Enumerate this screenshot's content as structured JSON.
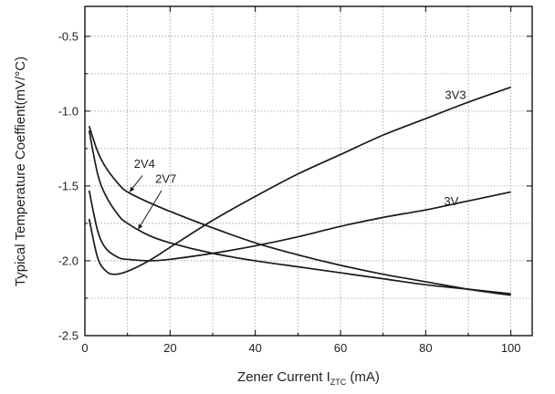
{
  "chart_data": {
    "type": "line",
    "title": "",
    "xlabel": {
      "main": "Zener Current  I",
      "sub": "ZTC",
      "tail": "  (mA)"
    },
    "ylabel": "Typical Temperature Coeffient(mV/°C)",
    "xlim": [
      0,
      105
    ],
    "ylim": [
      -2.5,
      -0.3
    ],
    "xticks": [
      0,
      20,
      40,
      60,
      80,
      100
    ],
    "yticks": [
      -2.5,
      -2.0,
      -1.5,
      -1.0,
      -0.5
    ],
    "xtick_labels": [
      "0",
      "20",
      "40",
      "60",
      "80",
      "100"
    ],
    "ytick_labels": [
      "-2.5",
      "-2.0",
      "-1.5",
      "-1.0",
      "-0.5"
    ],
    "grid": true,
    "series": [
      {
        "name": "3V3",
        "x": [
          1,
          3,
          5,
          7,
          10,
          15,
          20,
          30,
          40,
          50,
          60,
          70,
          80,
          90,
          100
        ],
        "y": [
          -1.72,
          -1.98,
          -2.07,
          -2.09,
          -2.07,
          -2.0,
          -1.91,
          -1.73,
          -1.57,
          -1.42,
          -1.29,
          -1.16,
          -1.05,
          -0.94,
          -0.84
        ]
      },
      {
        "name": "3V",
        "x": [
          1,
          3,
          5,
          8,
          10,
          15,
          20,
          30,
          40,
          50,
          60,
          70,
          80,
          90,
          100
        ],
        "y": [
          -1.53,
          -1.8,
          -1.92,
          -1.98,
          -1.99,
          -2.0,
          -1.99,
          -1.95,
          -1.9,
          -1.84,
          -1.77,
          -1.71,
          -1.66,
          -1.6,
          -1.54
        ]
      },
      {
        "name": "2V4",
        "x": [
          1,
          3,
          5,
          8,
          10,
          15,
          20,
          30,
          40,
          50,
          60,
          70,
          80,
          90,
          100
        ],
        "y": [
          -1.1,
          -1.27,
          -1.38,
          -1.49,
          -1.54,
          -1.61,
          -1.67,
          -1.78,
          -1.88,
          -1.96,
          -2.03,
          -2.09,
          -2.14,
          -2.19,
          -2.23
        ]
      },
      {
        "name": "2V7",
        "x": [
          1,
          3,
          5,
          8,
          10,
          15,
          20,
          30,
          40,
          50,
          60,
          70,
          80,
          90,
          100
        ],
        "y": [
          -1.13,
          -1.42,
          -1.57,
          -1.7,
          -1.75,
          -1.83,
          -1.88,
          -1.95,
          -2.0,
          -2.04,
          -2.08,
          -2.12,
          -2.16,
          -2.19,
          -2.22
        ]
      }
    ],
    "annotations": [
      {
        "text": "3V3",
        "x": 87,
        "y": -0.92
      },
      {
        "text": "3V",
        "x": 86,
        "y": -1.63
      },
      {
        "text": "2V4",
        "x": 14,
        "y": -1.38
      },
      {
        "text": "2V7",
        "x": 19,
        "y": -1.48
      }
    ],
    "colors": {
      "line": "#1a1a1a",
      "grid": "#9a9a9a",
      "axes": "#000000"
    }
  }
}
